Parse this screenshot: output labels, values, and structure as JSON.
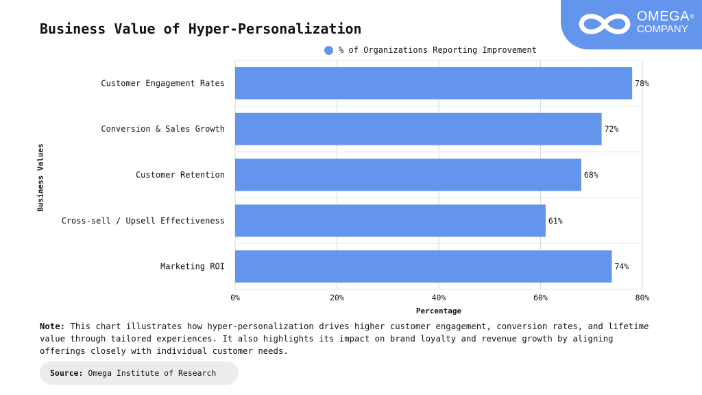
{
  "title": "Business Value of Hyper-Personalization",
  "logo": {
    "name": "OMEGA",
    "sub": "COMPANY",
    "mark": "®",
    "icon": "infinity-icon",
    "color": "#6495ed"
  },
  "legend": {
    "label": "% of Organizations Reporting Improvement"
  },
  "note": {
    "label": "Note:",
    "text": "This chart illustrates how hyper-personalization drives higher customer engagement, conversion rates, and lifetime value through tailored experiences. It also highlights its impact on brand loyalty and revenue growth by aligning offerings closely with individual customer needs."
  },
  "source": {
    "label": "Source:",
    "text": "Omega Institute of Research"
  },
  "chart_data": {
    "type": "bar",
    "orientation": "horizontal",
    "title": "Business Value of Hyper-Personalization",
    "xlabel": "Percentage",
    "ylabel": "Business Values",
    "categories": [
      "Customer Engagement Rates",
      "Conversion & Sales Growth",
      "Customer Retention",
      "Cross-sell / Upsell Effectiveness",
      "Marketing ROI"
    ],
    "series": [
      {
        "name": "% of Organizations Reporting Improvement",
        "values": [
          78,
          72,
          68,
          61,
          74
        ]
      }
    ],
    "value_labels": [
      "78%",
      "72%",
      "68%",
      "61%",
      "74%"
    ],
    "xticks": [
      "0%",
      "20%",
      "40%",
      "60%",
      "80%"
    ],
    "xlim": [
      0,
      80
    ],
    "grid": "vertical",
    "legend_position": "top",
    "bar_color": "#6495ed"
  }
}
